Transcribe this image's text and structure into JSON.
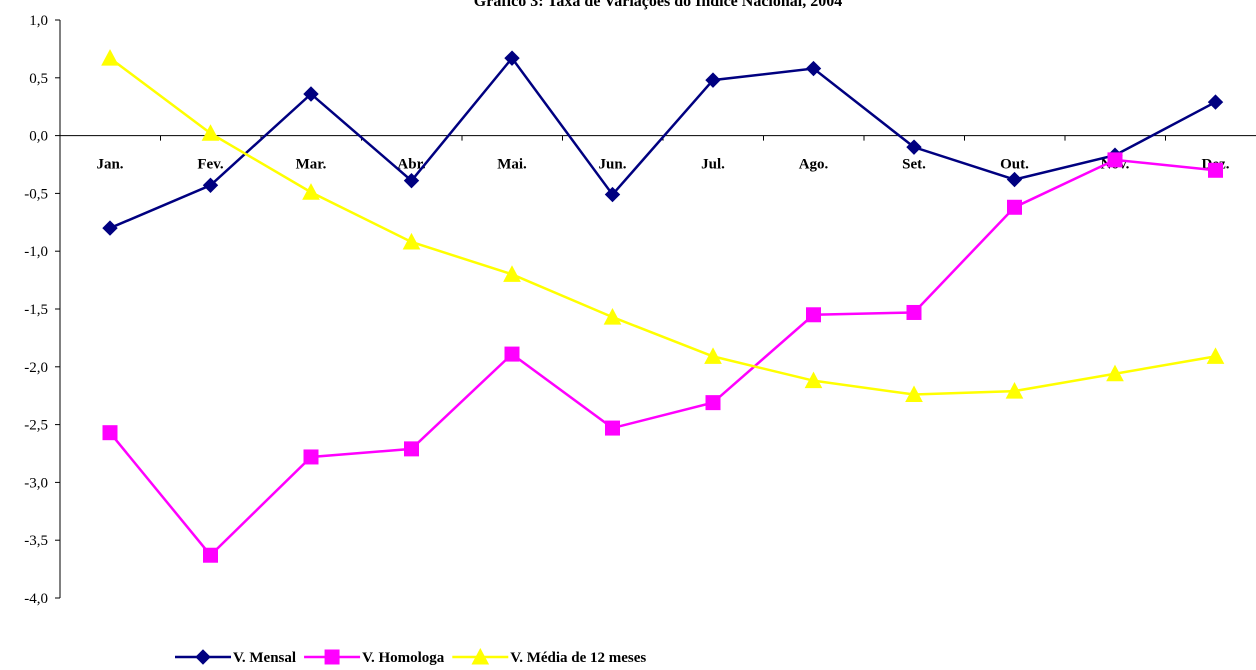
{
  "chart_data": {
    "type": "line",
    "title": "Gráfico 3: Taxa de Variações do Índice Nacional, 2004",
    "xlabel": "",
    "ylabel": "",
    "categories": [
      "Jan.",
      "Fev.",
      "Mar.",
      "Abr.",
      "Mai.",
      "Jun.",
      "Jul.",
      "Ago.",
      "Set.",
      "Out.",
      "Nov.",
      "Dez."
    ],
    "ylim": [
      -4.0,
      1.0
    ],
    "yticks": [
      "1,0",
      "0,5",
      "0,0",
      "-0,5",
      "-1,0",
      "-1,5",
      "-2,0",
      "-2,5",
      "-3,0",
      "-3,5",
      "-4,0"
    ],
    "grid": false,
    "legend_position": "bottom",
    "series": [
      {
        "name": "V. Mensal",
        "color": "#000080",
        "marker": "diamond",
        "values": [
          -0.8,
          -0.43,
          0.36,
          -0.39,
          0.67,
          -0.51,
          0.48,
          0.58,
          -0.1,
          -0.38,
          -0.17,
          0.29
        ]
      },
      {
        "name": "V. Homologa",
        "color": "#ff00ff",
        "marker": "square",
        "values": [
          -2.57,
          -3.63,
          -2.78,
          -2.71,
          -1.89,
          -2.53,
          -2.31,
          -1.55,
          -1.53,
          -0.62,
          -0.21,
          -0.3
        ]
      },
      {
        "name": "V. Média de 12 meses",
        "color": "#ffff00",
        "marker": "triangle",
        "values": [
          0.67,
          0.02,
          -0.49,
          -0.92,
          -1.2,
          -1.57,
          -1.91,
          -2.12,
          -2.24,
          -2.21,
          -2.06,
          -1.91
        ]
      }
    ]
  }
}
